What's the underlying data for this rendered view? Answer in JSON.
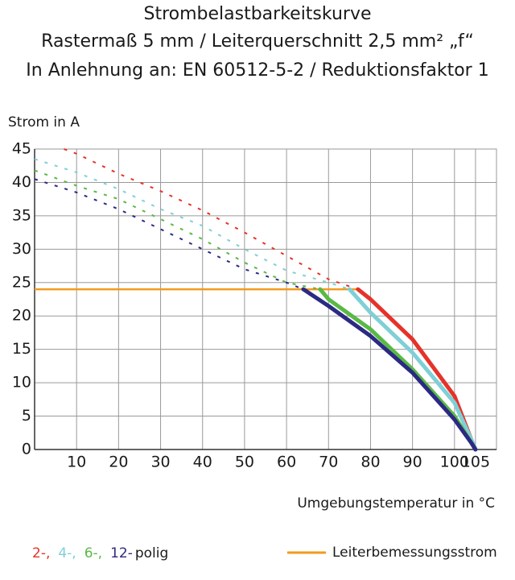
{
  "chart_data": {
    "type": "line",
    "title": "Strombelastbarkeitskurve",
    "subtitle": "Rastermaß 5 mm / Leiterquerschnitt 2,5 mm² „f“",
    "subtitle2": "In Anlehnung an: EN 60512-5-2 / Reduktionsfaktor 1",
    "y_label": "Strom in A",
    "x_label": "Umgebungstemperatur in °C",
    "xlim": [
      0,
      110
    ],
    "xticks": [
      10,
      20,
      30,
      40,
      50,
      60,
      70,
      80,
      90,
      100,
      105
    ],
    "ylim": [
      0,
      45
    ],
    "yticks": [
      0,
      5,
      10,
      15,
      20,
      25,
      30,
      35,
      40,
      45
    ],
    "grid": true,
    "legend_suffix": "polig",
    "rated_current": {
      "name": "Leiterbemessungsstrom",
      "value": 24,
      "color": "#f39a1e"
    },
    "series": [
      {
        "name": "2-,",
        "color": "#e5332a",
        "x": [
          7,
          10,
          20,
          30,
          40,
          50,
          60,
          70,
          77,
          80,
          90,
          100,
          104,
          105
        ],
        "values": [
          45,
          44.3,
          41.3,
          38.7,
          35.8,
          32.5,
          29,
          25.5,
          24,
          22.5,
          16.5,
          8,
          1.5,
          0
        ]
      },
      {
        "name": "4-,",
        "color": "#7fd0d6",
        "x": [
          0,
          10,
          20,
          30,
          40,
          50,
          60,
          70,
          75,
          80,
          90,
          100,
          104,
          105
        ],
        "values": [
          43.5,
          41.5,
          39,
          36,
          33.5,
          30,
          26.8,
          25,
          24,
          20.5,
          14.5,
          7,
          1.5,
          0
        ]
      },
      {
        "name": "6-,",
        "color": "#5ab946",
        "x": [
          0,
          10,
          20,
          30,
          40,
          50,
          60,
          68,
          70,
          80,
          90,
          100,
          104,
          105
        ],
        "values": [
          41.8,
          39.5,
          37.5,
          34.5,
          31.5,
          28,
          25,
          24,
          22.5,
          18,
          12,
          5,
          1,
          0
        ]
      },
      {
        "name": "12-",
        "color": "#2b2a83",
        "x": [
          0,
          10,
          20,
          30,
          40,
          50,
          60,
          64,
          70,
          80,
          90,
          100,
          104,
          105
        ],
        "values": [
          40.5,
          38.5,
          36,
          33,
          30,
          27,
          25,
          24,
          21.5,
          17,
          11.5,
          4.5,
          1,
          0
        ]
      }
    ]
  }
}
